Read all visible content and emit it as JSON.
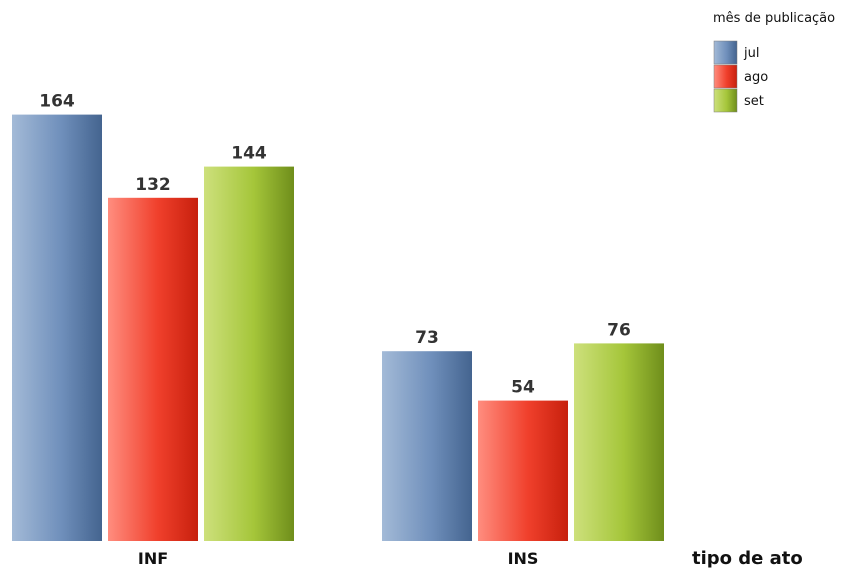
{
  "chart_data": {
    "type": "bar",
    "categories": [
      "INF",
      "INS"
    ],
    "xlabel": "tipo de ato",
    "ylabel": "",
    "ylim": [
      0,
      170
    ],
    "grid": false,
    "legend": {
      "title": "mês de publicação",
      "placement": "top-right"
    },
    "series": [
      {
        "name": "jul",
        "values": [
          164,
          73
        ],
        "color": "#5a7fae"
      },
      {
        "name": "ago",
        "values": [
          132,
          54
        ],
        "color": "#e8321e"
      },
      {
        "name": "set",
        "values": [
          144,
          76
        ],
        "color": "#97bb2a"
      }
    ]
  }
}
